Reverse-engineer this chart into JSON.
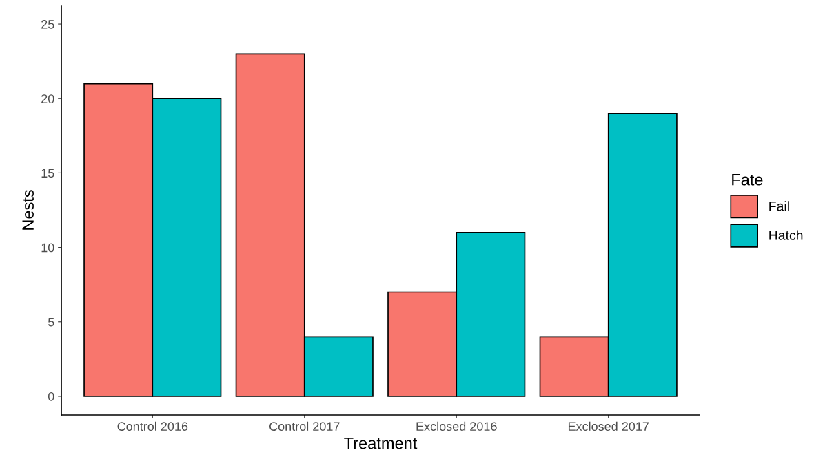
{
  "chart_data": {
    "type": "bar",
    "xlabel": "Treatment",
    "ylabel": "Nests",
    "legend_title": "Fate",
    "categories": [
      "Control 2016",
      "Control 2017",
      "Exclosed 2016",
      "Exclosed 2017"
    ],
    "series": [
      {
        "name": "Fail",
        "color": "#f8766d",
        "values": [
          21,
          23,
          7,
          4
        ]
      },
      {
        "name": "Hatch",
        "color": "#00bfc4",
        "values": [
          20,
          4,
          11,
          19
        ]
      }
    ],
    "ylim": [
      -1.25,
      26.25
    ],
    "yticks": [
      0,
      5,
      10,
      15,
      20,
      25
    ],
    "grid": false,
    "legend": "right"
  }
}
